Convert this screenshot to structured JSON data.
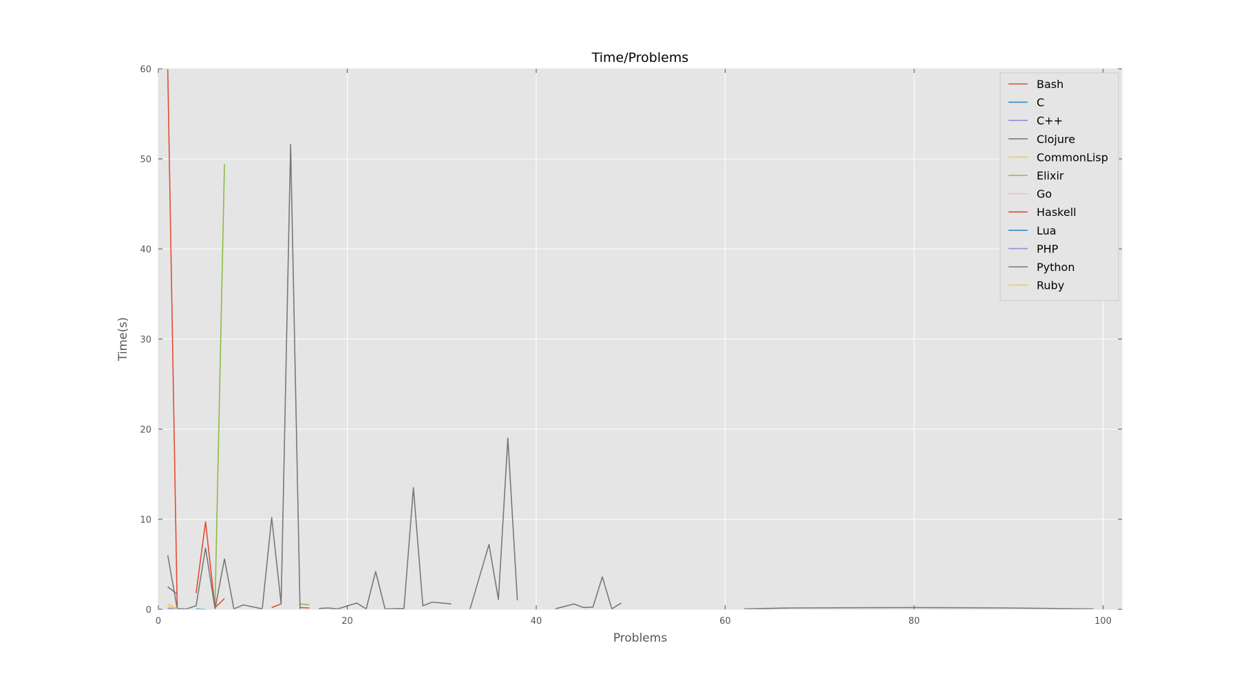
{
  "chart_data": {
    "type": "line",
    "title": "Time/Problems",
    "xlabel": "Problems",
    "ylabel": "Time(s)",
    "xlim": [
      0,
      102
    ],
    "ylim": [
      0,
      60
    ],
    "xticks": [
      0,
      20,
      40,
      60,
      80,
      100
    ],
    "yticks": [
      0,
      10,
      20,
      30,
      40,
      50,
      60
    ],
    "grid": true,
    "legend_position": "top-right",
    "background": "#e5e5e5",
    "series": [
      {
        "name": "Bash",
        "color": "#e24a33",
        "segments": [
          [
            [
              1,
              60
            ],
            [
              2,
              0
            ]
          ]
        ]
      },
      {
        "name": "C",
        "color": "#348abd",
        "segments": [
          [
            [
              1,
              0.1
            ],
            [
              3,
              0.05
            ]
          ],
          [
            [
              4,
              0.05
            ],
            [
              5,
              0
            ]
          ]
        ]
      },
      {
        "name": "C++",
        "color": "#988ed5",
        "segments": [
          [
            [
              1,
              0.1
            ],
            [
              3,
              0.05
            ]
          ]
        ]
      },
      {
        "name": "Clojure",
        "color": "#777777",
        "segments": [
          [
            [
              1,
              2.5
            ],
            [
              2,
              1.7
            ]
          ]
        ]
      },
      {
        "name": "CommonLisp",
        "color": "#fbc15e",
        "segments": [
          [
            [
              1,
              0.6
            ],
            [
              2,
              0.1
            ]
          ]
        ]
      },
      {
        "name": "Elixir",
        "color": "#8eba42",
        "segments": [
          [
            [
              6,
              0.5
            ],
            [
              7,
              49.4
            ]
          ],
          [
            [
              15,
              0.6
            ],
            [
              16,
              0.5
            ]
          ]
        ]
      },
      {
        "name": "Go",
        "color": "#ffb5b8",
        "segments": [
          [
            [
              1,
              0.05
            ],
            [
              3,
              0.05
            ]
          ]
        ]
      },
      {
        "name": "Haskell",
        "color": "#e24a33",
        "segments": [
          [
            [
              4,
              1.8
            ],
            [
              5,
              9.7
            ],
            [
              6,
              0.2
            ],
            [
              7,
              1.2
            ]
          ],
          [
            [
              12,
              0.2
            ],
            [
              13,
              0.6
            ]
          ],
          [
            [
              15,
              0.2
            ],
            [
              16,
              0.15
            ]
          ]
        ]
      },
      {
        "name": "Lua",
        "color": "#348abd",
        "segments": [
          [
            [
              1,
              0.05
            ],
            [
              2,
              0.05
            ]
          ]
        ]
      },
      {
        "name": "PHP",
        "color": "#988ed5",
        "segments": [
          [
            [
              1,
              0.05
            ],
            [
              2,
              0.05
            ]
          ]
        ]
      },
      {
        "name": "Python",
        "color": "#777777",
        "segments": [
          [
            [
              1,
              6
            ],
            [
              2,
              0.05
            ],
            [
              3,
              0.05
            ],
            [
              4,
              0.4
            ],
            [
              5,
              6.8
            ],
            [
              6,
              0.05
            ],
            [
              7,
              5.6
            ],
            [
              8,
              0.05
            ],
            [
              9,
              0.5
            ],
            [
              11,
              0.05
            ],
            [
              12,
              10.2
            ],
            [
              13,
              0.6
            ],
            [
              14,
              51.6
            ],
            [
              15,
              0.05
            ]
          ],
          [
            [
              17,
              0.1
            ],
            [
              18,
              0.15
            ],
            [
              19,
              0.05
            ],
            [
              21,
              0.7
            ],
            [
              22,
              0.05
            ],
            [
              23,
              4.2
            ],
            [
              24,
              0.05
            ],
            [
              26,
              0.1
            ],
            [
              27,
              13.5
            ],
            [
              28,
              0.4
            ],
            [
              29,
              0.8
            ],
            [
              31,
              0.6
            ]
          ],
          [
            [
              33,
              0.05
            ],
            [
              35,
              7.2
            ],
            [
              36,
              1.1
            ],
            [
              37,
              19
            ],
            [
              38,
              1
            ]
          ],
          [
            [
              42,
              0.05
            ],
            [
              44,
              0.6
            ],
            [
              45,
              0.2
            ],
            [
              46,
              0.25
            ],
            [
              47,
              3.6
            ],
            [
              48,
              0.05
            ],
            [
              49,
              0.7
            ]
          ],
          [
            [
              62,
              0.05
            ],
            [
              67,
              0.15
            ],
            [
              80,
              0.2
            ],
            [
              90,
              0.15
            ],
            [
              99,
              0.05
            ]
          ]
        ]
      },
      {
        "name": "Ruby",
        "color": "#fbc15e",
        "segments": [
          [
            [
              1,
              0.3
            ],
            [
              2,
              0.1
            ]
          ]
        ]
      }
    ]
  }
}
